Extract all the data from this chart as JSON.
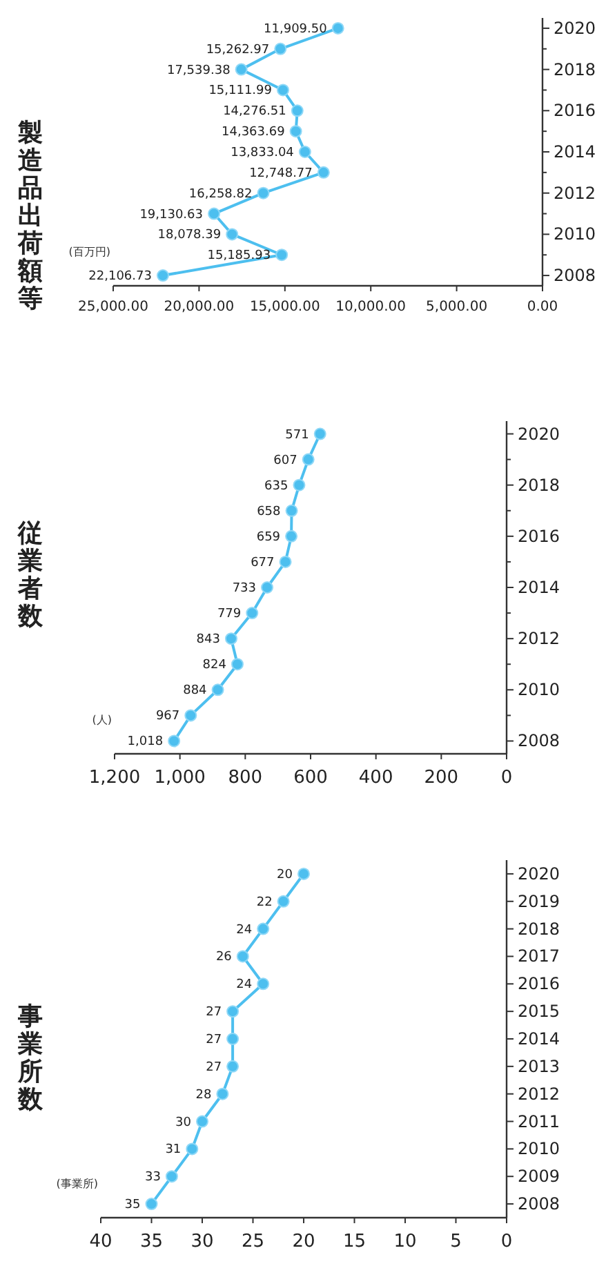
{
  "chart_data": [
    {
      "type": "line",
      "orientation": "horizontal",
      "title": "事業所数",
      "xlabel": "(事業所)",
      "color": "#4dbfef",
      "marker": "circle",
      "grid": false,
      "legend": false,
      "data_labels": true,
      "categories": [
        "2020",
        "2019",
        "2018",
        "2017",
        "2016",
        "2015",
        "2014",
        "2013",
        "2012",
        "2011",
        "2010",
        "2009",
        "2008"
      ],
      "values": [
        20,
        22,
        24,
        26,
        24,
        27,
        27,
        27,
        28,
        30,
        31,
        33,
        35
      ],
      "xlim": [
        40,
        0
      ],
      "xticks": [
        0,
        5,
        10,
        15,
        20,
        25,
        30,
        35,
        40
      ]
    },
    {
      "type": "line",
      "orientation": "horizontal",
      "title": "従業者数",
      "xlabel": "(人)",
      "color": "#4dbfef",
      "marker": "circle",
      "grid": false,
      "legend": false,
      "categories": [
        "2020",
        null,
        "2018",
        null,
        "2016",
        null,
        "2014",
        null,
        "2012",
        null,
        "2010",
        null,
        "2008"
      ],
      "values": [
        571,
        607,
        635,
        658,
        659,
        677,
        733,
        779,
        843,
        824,
        884,
        967,
        1018
      ],
      "value_labels": [
        "571",
        "607",
        "635",
        "658",
        "659",
        "677",
        "733",
        "779",
        "843",
        "824",
        "884",
        "967",
        "1,018"
      ],
      "xlim": [
        1200,
        0
      ],
      "xticks": [
        0,
        200,
        400,
        600,
        800,
        {
          "value": 1000,
          "label": "1,000"
        },
        {
          "value": 1200,
          "label": "1,200"
        }
      ]
    },
    {
      "type": "line",
      "orientation": "horizontal",
      "title": "製造品出荷額等",
      "xlabel": "(百万円)",
      "color": "#4dbfef",
      "marker": "circle",
      "grid": false,
      "legend": false,
      "categories": [
        "2020",
        null,
        "2018",
        null,
        "2016",
        null,
        "2014",
        null,
        "2012",
        null,
        "2010",
        null,
        "2008"
      ],
      "values": [
        11909.5,
        15262.97,
        17539.38,
        15111.99,
        14276.51,
        14363.69,
        13833.04,
        12748.77,
        16258.82,
        19130.63,
        18078.39,
        15185.93,
        22106.73
      ],
      "value_labels": [
        "11,909.50",
        "15,262.97",
        "17,539.38",
        "15,111.99",
        "14,276.51",
        "14,363.69",
        "13,833.04",
        "12,748.77",
        "16,258.82",
        "19,130.63",
        "18,078.39",
        "15,185.93",
        "22,106.73"
      ],
      "xlim": [
        25000,
        0
      ],
      "xticks": [
        {
          "value": 0,
          "label": "0.00"
        },
        {
          "value": 5000,
          "label": "5,000.00"
        },
        {
          "value": 10000,
          "label": "10,000.00"
        },
        {
          "value": 15000,
          "label": "15,000.00"
        },
        {
          "value": 20000,
          "label": "20,000.00"
        },
        {
          "value": 25000,
          "label": "25,000.00"
        }
      ]
    }
  ]
}
